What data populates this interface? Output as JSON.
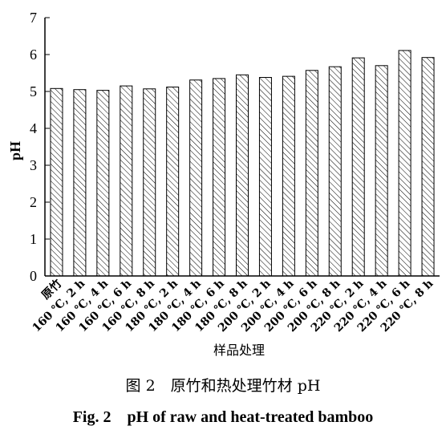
{
  "chart_data": {
    "type": "bar",
    "categories": [
      "原竹",
      "160 ℃, 2 h",
      "160 ℃, 4 h",
      "160 ℃, 6 h",
      "160 ℃, 8 h",
      "180 ℃, 2 h",
      "180 ℃, 4 h",
      "180 ℃, 6 h",
      "180 ℃, 8 h",
      "200 ℃, 2 h",
      "200 ℃, 4 h",
      "200 ℃, 6 h",
      "200 ℃, 8 h",
      "220 ℃, 2 h",
      "220 ℃, 4 h",
      "220 ℃, 6 h",
      "220 ℃, 8 h"
    ],
    "values": [
      5.08,
      5.05,
      5.03,
      5.15,
      5.07,
      5.12,
      5.31,
      5.35,
      5.45,
      5.38,
      5.41,
      5.57,
      5.67,
      5.91,
      5.7,
      6.11,
      5.92
    ],
    "ylabel": "pH",
    "xlabel": "样品处理",
    "ylim": [
      0,
      7
    ],
    "yticks": [
      0,
      1,
      2,
      3,
      4,
      5,
      6,
      7
    ],
    "bar_fill": "diagonal hatch",
    "bar_color": "#000000"
  },
  "caption": {
    "cn": "图 2　原竹和热处理竹材 pH",
    "en": "Fig. 2　pH of raw and heat-treated bamboo"
  }
}
